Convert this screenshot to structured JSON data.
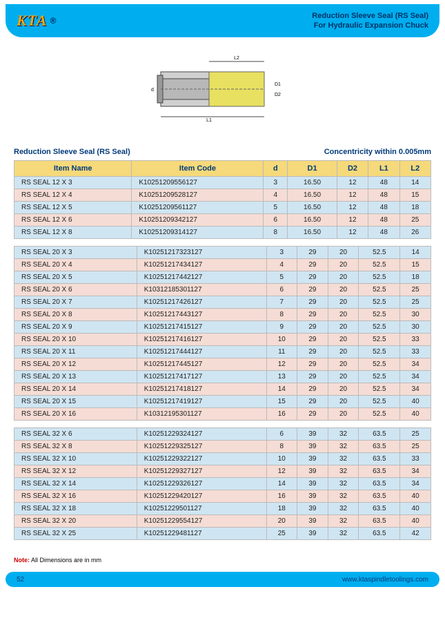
{
  "header": {
    "logo_text": "KTA",
    "title_line1": "Reduction Sleeve Seal (RS Seal)",
    "title_line2": "For Hydraulic Expansion Chuck"
  },
  "section": {
    "title": "Reduction Sleeve Seal (RS Seal)",
    "concentricity": "Concentricity within 0.005mm"
  },
  "table": {
    "columns": [
      "Item Name",
      "Item Code",
      "d",
      "D1",
      "D2",
      "L1",
      "L2"
    ]
  },
  "groups": [
    {
      "rows": [
        {
          "name": "RS SEAL 12 X 3",
          "code": "K10251209556127",
          "d": "3",
          "D1": "16.50",
          "D2": "12",
          "L1": "48",
          "L2": "14"
        },
        {
          "name": "RS SEAL 12 X 4",
          "code": "K10251209528127",
          "d": "4",
          "D1": "16.50",
          "D2": "12",
          "L1": "48",
          "L2": "15"
        },
        {
          "name": "RS SEAL 12 X 5",
          "code": "K10251209561127",
          "d": "5",
          "D1": "16.50",
          "D2": "12",
          "L1": "48",
          "L2": "18"
        },
        {
          "name": "RS SEAL 12 X 6",
          "code": "K10251209342127",
          "d": "6",
          "D1": "16.50",
          "D2": "12",
          "L1": "48",
          "L2": "25"
        },
        {
          "name": "RS SEAL 12 X 8",
          "code": "K10251209314127",
          "d": "8",
          "D1": "16.50",
          "D2": "12",
          "L1": "48",
          "L2": "26"
        }
      ]
    },
    {
      "rows": [
        {
          "name": "RS SEAL 20 X 3",
          "code": "K10251217323127",
          "d": "3",
          "D1": "29",
          "D2": "20",
          "L1": "52.5",
          "L2": "14"
        },
        {
          "name": "RS SEAL 20 X 4",
          "code": "K10251217434127",
          "d": "4",
          "D1": "29",
          "D2": "20",
          "L1": "52.5",
          "L2": "15"
        },
        {
          "name": "RS SEAL 20 X 5",
          "code": "K10251217442127",
          "d": "5",
          "D1": "29",
          "D2": "20",
          "L1": "52.5",
          "L2": "18"
        },
        {
          "name": "RS SEAL 20 X 6",
          "code": "K10312185301127",
          "d": "6",
          "D1": "29",
          "D2": "20",
          "L1": "52.5",
          "L2": "25"
        },
        {
          "name": "RS SEAL 20 X 7",
          "code": "K10251217426127",
          "d": "7",
          "D1": "29",
          "D2": "20",
          "L1": "52.5",
          "L2": "25"
        },
        {
          "name": "RS SEAL 20 X 8",
          "code": "K10251217443127",
          "d": "8",
          "D1": "29",
          "D2": "20",
          "L1": "52.5",
          "L2": "30"
        },
        {
          "name": "RS SEAL 20 X 9",
          "code": "K10251217415127",
          "d": "9",
          "D1": "29",
          "D2": "20",
          "L1": "52.5",
          "L2": "30"
        },
        {
          "name": "RS SEAL 20 X 10",
          "code": "K10251217416127",
          "d": "10",
          "D1": "29",
          "D2": "20",
          "L1": "52.5",
          "L2": "33"
        },
        {
          "name": "RS SEAL 20 X 11",
          "code": "K10251217444127",
          "d": "11",
          "D1": "29",
          "D2": "20",
          "L1": "52.5",
          "L2": "33"
        },
        {
          "name": "RS SEAL 20 X 12",
          "code": "K10251217445127",
          "d": "12",
          "D1": "29",
          "D2": "20",
          "L1": "52.5",
          "L2": "34"
        },
        {
          "name": "RS SEAL 20 X 13",
          "code": "K10251217417127",
          "d": "13",
          "D1": "29",
          "D2": "20",
          "L1": "52.5",
          "L2": "34"
        },
        {
          "name": "RS SEAL 20 X 14",
          "code": "K10251217418127",
          "d": "14",
          "D1": "29",
          "D2": "20",
          "L1": "52.5",
          "L2": "34"
        },
        {
          "name": "RS SEAL 20 X 15",
          "code": "K10251217419127",
          "d": "15",
          "D1": "29",
          "D2": "20",
          "L1": "52.5",
          "L2": "40"
        },
        {
          "name": "RS SEAL 20 X 16",
          "code": "K10312195301127",
          "d": "16",
          "D1": "29",
          "D2": "20",
          "L1": "52.5",
          "L2": "40"
        }
      ]
    },
    {
      "rows": [
        {
          "name": "RS SEAL 32 X 6",
          "code": "K10251229324127",
          "d": "6",
          "D1": "39",
          "D2": "32",
          "L1": "63.5",
          "L2": "25"
        },
        {
          "name": "RS SEAL 32 X 8",
          "code": "K10251229325127",
          "d": "8",
          "D1": "39",
          "D2": "32",
          "L1": "63.5",
          "L2": "25"
        },
        {
          "name": "RS SEAL 32 X 10",
          "code": "K10251229322127",
          "d": "10",
          "D1": "39",
          "D2": "32",
          "L1": "63.5",
          "L2": "33"
        },
        {
          "name": "RS SEAL 32 X 12",
          "code": "K10251229327127",
          "d": "12",
          "D1": "39",
          "D2": "32",
          "L1": "63.5",
          "L2": "34"
        },
        {
          "name": "RS SEAL 32 X 14",
          "code": "K10251229326127",
          "d": "14",
          "D1": "39",
          "D2": "32",
          "L1": "63.5",
          "L2": "34"
        },
        {
          "name": "RS SEAL 32 X 16",
          "code": "K10251229420127",
          "d": "16",
          "D1": "39",
          "D2": "32",
          "L1": "63.5",
          "L2": "40"
        },
        {
          "name": "RS SEAL 32 X 18",
          "code": "K10251229501127",
          "d": "18",
          "D1": "39",
          "D2": "32",
          "L1": "63.5",
          "L2": "40"
        },
        {
          "name": "RS SEAL 32 X 20",
          "code": "K10251229554127",
          "d": "20",
          "D1": "39",
          "D2": "32",
          "L1": "63.5",
          "L2": "40"
        },
        {
          "name": "RS SEAL 32 X 25",
          "code": "K10251229481127",
          "d": "25",
          "D1": "39",
          "D2": "32",
          "L1": "63.5",
          "L2": "42"
        }
      ]
    }
  ],
  "note": {
    "label": "Note:",
    "text": "All Dimensions are in mm"
  },
  "footer": {
    "page": "52",
    "url": "www.ktaspindletoolings.com"
  },
  "diagram_labels": {
    "L1": "L1",
    "L2": "L2",
    "d": "d",
    "D1": "D1",
    "D2": "D2"
  },
  "colors": {
    "header_bg": "#00aeef",
    "th_bg": "#f5d97a",
    "row_blue": "#cfe5f2",
    "row_pink": "#f5dcd4",
    "logo": "#f7a600",
    "title_text": "#003a7a"
  }
}
